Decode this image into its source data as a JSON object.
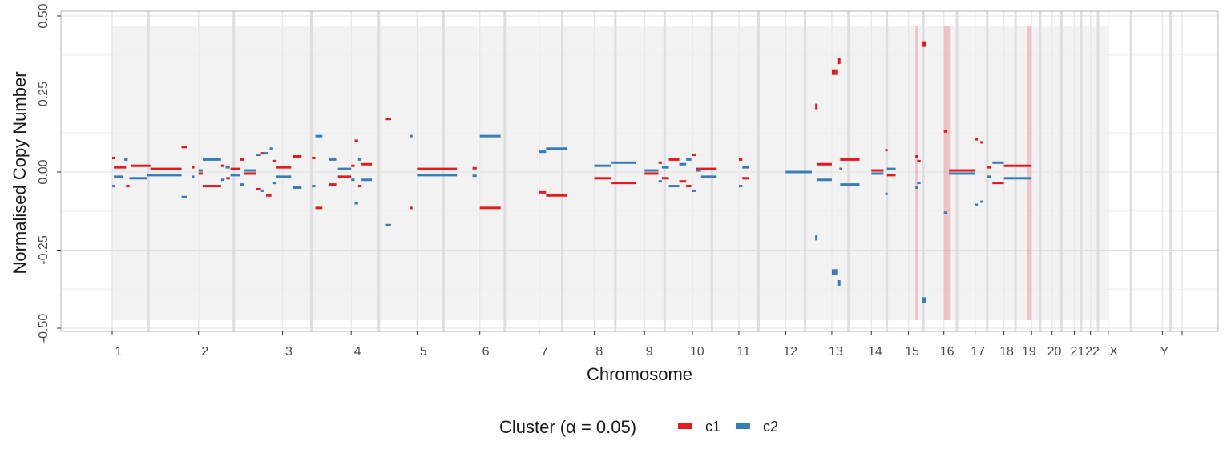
{
  "chart_data": {
    "type": "segment",
    "ylabel": "Normalised Copy Number",
    "xlabel": "Chromosome",
    "ylim": [
      -0.5,
      0.5
    ],
    "y_ticks": [
      -0.5,
      -0.25,
      0.0,
      0.25,
      0.5
    ],
    "y_tick_labels": [
      "-0.50",
      "-0.25",
      "0.00",
      "0.25",
      "0.50"
    ],
    "x_min_label": "-",
    "grid": true,
    "chromosomes": [
      "1",
      "2",
      "3",
      "4",
      "5",
      "6",
      "7",
      "8",
      "9",
      "10",
      "11",
      "12",
      "13",
      "14",
      "15",
      "16",
      "17",
      "18",
      "19",
      "20",
      "21",
      "22",
      "X",
      "Y"
    ],
    "chromosome_sizes_mb": [
      249,
      242,
      198,
      190,
      181,
      171,
      159,
      145,
      138,
      134,
      135,
      133,
      114,
      107,
      102,
      90,
      83,
      80,
      59,
      64,
      47,
      51,
      156,
      57
    ],
    "legend": {
      "title": "Cluster (α = 0.05)",
      "position": "bottom",
      "entries": [
        {
          "label": "c1",
          "color": "#e41a1c"
        },
        {
          "label": "c2",
          "color": "#377eb8"
        }
      ]
    },
    "highlighted_regions": [
      {
        "chrom": "15",
        "start_mb": 20,
        "end_mb": 27
      },
      {
        "chrom": "16",
        "start_mb": 0,
        "end_mb": 20
      },
      {
        "chrom": "18",
        "start_mb": 66,
        "end_mb": 80
      }
    ],
    "series": [
      {
        "name": "c1",
        "color": "#e41a1c",
        "segments": [
          {
            "chrom": "1",
            "start": 0,
            "end": 5,
            "value": 0.045
          },
          {
            "chrom": "1",
            "start": 5,
            "end": 40,
            "value": 0.015
          },
          {
            "chrom": "1",
            "start": 40,
            "end": 50,
            "value": -0.045
          },
          {
            "chrom": "1",
            "start": 55,
            "end": 110,
            "value": 0.02
          },
          {
            "chrom": "1",
            "start": 110,
            "end": 200,
            "value": 0.01
          },
          {
            "chrom": "1",
            "start": 200,
            "end": 215,
            "value": 0.08
          },
          {
            "chrom": "1",
            "start": 230,
            "end": 236,
            "value": 0.015
          },
          {
            "chrom": "2",
            "start": 0,
            "end": 12,
            "value": -0.005
          },
          {
            "chrom": "2",
            "start": 12,
            "end": 65,
            "value": -0.045
          },
          {
            "chrom": "2",
            "start": 65,
            "end": 75,
            "value": 0.02
          },
          {
            "chrom": "2",
            "start": 80,
            "end": 90,
            "value": -0.02
          },
          {
            "chrom": "2",
            "start": 92,
            "end": 120,
            "value": 0.01
          },
          {
            "chrom": "2",
            "start": 120,
            "end": 130,
            "value": 0.04
          },
          {
            "chrom": "2",
            "start": 130,
            "end": 165,
            "value": -0.005
          },
          {
            "chrom": "2",
            "start": 165,
            "end": 180,
            "value": -0.055
          },
          {
            "chrom": "2",
            "start": 180,
            "end": 190,
            "value": 0.06
          },
          {
            "chrom": "2",
            "start": 195,
            "end": 210,
            "value": -0.075
          },
          {
            "chrom": "2",
            "start": 215,
            "end": 225,
            "value": 0.035
          },
          {
            "chrom": "2",
            "start": 225,
            "end": 242,
            "value": 0.015
          },
          {
            "chrom": "3",
            "start": 0,
            "end": 25,
            "value": 0.015
          },
          {
            "chrom": "3",
            "start": 30,
            "end": 55,
            "value": 0.05
          },
          {
            "chrom": "3",
            "start": 85,
            "end": 95,
            "value": 0.045
          },
          {
            "chrom": "3",
            "start": 95,
            "end": 115,
            "value": -0.115
          },
          {
            "chrom": "3",
            "start": 135,
            "end": 155,
            "value": -0.04
          },
          {
            "chrom": "3",
            "start": 160,
            "end": 198,
            "value": -0.015
          },
          {
            "chrom": "4",
            "start": 0,
            "end": 10,
            "value": 0.02
          },
          {
            "chrom": "4",
            "start": 10,
            "end": 20,
            "value": 0.1
          },
          {
            "chrom": "4",
            "start": 20,
            "end": 30,
            "value": -0.045
          },
          {
            "chrom": "4",
            "start": 30,
            "end": 60,
            "value": 0.025
          },
          {
            "chrom": "4",
            "start": 100,
            "end": 115,
            "value": 0.17
          },
          {
            "chrom": "4",
            "start": 170,
            "end": 176,
            "value": -0.115
          },
          {
            "chrom": "5",
            "start": 0,
            "end": 115,
            "value": 0.01
          },
          {
            "chrom": "5",
            "start": 160,
            "end": 172,
            "value": 0.012
          },
          {
            "chrom": "6",
            "start": 0,
            "end": 60,
            "value": -0.115
          },
          {
            "chrom": "7",
            "start": 0,
            "end": 20,
            "value": -0.065
          },
          {
            "chrom": "7",
            "start": 20,
            "end": 80,
            "value": -0.075
          },
          {
            "chrom": "8",
            "start": 0,
            "end": 50,
            "value": -0.02
          },
          {
            "chrom": "8",
            "start": 50,
            "end": 120,
            "value": -0.035
          },
          {
            "chrom": "9",
            "start": 0,
            "end": 40,
            "value": -0.005
          },
          {
            "chrom": "9",
            "start": 40,
            "end": 50,
            "value": 0.03
          },
          {
            "chrom": "9",
            "start": 50,
            "end": 70,
            "value": -0.02
          },
          {
            "chrom": "9",
            "start": 70,
            "end": 100,
            "value": 0.04
          },
          {
            "chrom": "9",
            "start": 100,
            "end": 120,
            "value": -0.03
          },
          {
            "chrom": "9",
            "start": 120,
            "end": 135,
            "value": -0.045
          },
          {
            "chrom": "10",
            "start": 0,
            "end": 10,
            "value": 0.055
          },
          {
            "chrom": "10",
            "start": 10,
            "end": 25,
            "value": 0.01
          },
          {
            "chrom": "10",
            "start": 25,
            "end": 70,
            "value": 0.01
          },
          {
            "chrom": "11",
            "start": 0,
            "end": 10,
            "value": 0.04
          },
          {
            "chrom": "11",
            "start": 10,
            "end": 30,
            "value": -0.02
          },
          {
            "chrom": "12",
            "start": 0,
            "end": 75,
            "value": 0.0
          },
          {
            "chrom": "12",
            "start": 85,
            "end": 90,
            "value": 0.21
          },
          {
            "chrom": "12",
            "start": 90,
            "end": 133,
            "value": 0.025
          },
          {
            "chrom": "13",
            "start": 0,
            "end": 18,
            "value": 0.32
          },
          {
            "chrom": "13",
            "start": 18,
            "end": 22,
            "value": 0.355
          },
          {
            "chrom": "13",
            "start": 22,
            "end": 24,
            "value": 0.01
          },
          {
            "chrom": "13",
            "start": 24,
            "end": 80,
            "value": 0.04
          },
          {
            "chrom": "14",
            "start": 0,
            "end": 35,
            "value": 0.005
          },
          {
            "chrom": "14",
            "start": 40,
            "end": 45,
            "value": 0.07
          },
          {
            "chrom": "14",
            "start": 45,
            "end": 70,
            "value": -0.01
          },
          {
            "chrom": "15",
            "start": 20,
            "end": 25,
            "value": 0.05
          },
          {
            "chrom": "15",
            "start": 25,
            "end": 35,
            "value": 0.035
          },
          {
            "chrom": "15",
            "start": 40,
            "end": 50,
            "value": 0.41
          },
          {
            "chrom": "16",
            "start": 0,
            "end": 10,
            "value": 0.13
          },
          {
            "chrom": "16",
            "start": 15,
            "end": 90,
            "value": 0.005
          },
          {
            "chrom": "17",
            "start": 0,
            "end": 8,
            "value": 0.105
          },
          {
            "chrom": "17",
            "start": 15,
            "end": 23,
            "value": 0.095
          },
          {
            "chrom": "17",
            "start": 35,
            "end": 45,
            "value": 0.015
          },
          {
            "chrom": "17",
            "start": 50,
            "end": 83,
            "value": -0.035
          },
          {
            "chrom": "18",
            "start": 0,
            "end": 80,
            "value": 0.02
          }
        ]
      },
      {
        "name": "c2",
        "color": "#377eb8",
        "segments": [
          {
            "chrom": "1",
            "start": 0,
            "end": 5,
            "value": -0.045
          },
          {
            "chrom": "1",
            "start": 5,
            "end": 30,
            "value": -0.015
          },
          {
            "chrom": "1",
            "start": 35,
            "end": 45,
            "value": 0.04
          },
          {
            "chrom": "1",
            "start": 50,
            "end": 100,
            "value": -0.02
          },
          {
            "chrom": "1",
            "start": 100,
            "end": 200,
            "value": -0.01
          },
          {
            "chrom": "1",
            "start": 200,
            "end": 215,
            "value": -0.08
          },
          {
            "chrom": "1",
            "start": 230,
            "end": 236,
            "value": -0.015
          },
          {
            "chrom": "2",
            "start": 0,
            "end": 12,
            "value": 0.005
          },
          {
            "chrom": "2",
            "start": 12,
            "end": 65,
            "value": 0.04
          },
          {
            "chrom": "2",
            "start": 65,
            "end": 75,
            "value": -0.025
          },
          {
            "chrom": "2",
            "start": 78,
            "end": 90,
            "value": 0.015
          },
          {
            "chrom": "2",
            "start": 92,
            "end": 120,
            "value": -0.01
          },
          {
            "chrom": "2",
            "start": 120,
            "end": 130,
            "value": -0.04
          },
          {
            "chrom": "2",
            "start": 130,
            "end": 165,
            "value": 0.005
          },
          {
            "chrom": "2",
            "start": 165,
            "end": 180,
            "value": 0.055
          },
          {
            "chrom": "2",
            "start": 180,
            "end": 190,
            "value": -0.06
          },
          {
            "chrom": "2",
            "start": 190,
            "end": 200,
            "value": 0.06
          },
          {
            "chrom": "2",
            "start": 205,
            "end": 215,
            "value": 0.075
          },
          {
            "chrom": "2",
            "start": 215,
            "end": 225,
            "value": -0.035
          },
          {
            "chrom": "2",
            "start": 225,
            "end": 242,
            "value": -0.015
          },
          {
            "chrom": "3",
            "start": 0,
            "end": 25,
            "value": -0.015
          },
          {
            "chrom": "3",
            "start": 30,
            "end": 55,
            "value": -0.05
          },
          {
            "chrom": "3",
            "start": 85,
            "end": 95,
            "value": -0.045
          },
          {
            "chrom": "3",
            "start": 95,
            "end": 115,
            "value": 0.115
          },
          {
            "chrom": "3",
            "start": 135,
            "end": 155,
            "value": 0.04
          },
          {
            "chrom": "3",
            "start": 160,
            "end": 198,
            "value": 0.01
          },
          {
            "chrom": "4",
            "start": 0,
            "end": 10,
            "value": -0.025
          },
          {
            "chrom": "4",
            "start": 10,
            "end": 20,
            "value": -0.1
          },
          {
            "chrom": "4",
            "start": 20,
            "end": 30,
            "value": 0.04
          },
          {
            "chrom": "4",
            "start": 30,
            "end": 60,
            "value": -0.025
          },
          {
            "chrom": "4",
            "start": 100,
            "end": 115,
            "value": -0.17
          },
          {
            "chrom": "4",
            "start": 170,
            "end": 176,
            "value": 0.115
          },
          {
            "chrom": "5",
            "start": 0,
            "end": 115,
            "value": -0.01
          },
          {
            "chrom": "5",
            "start": 160,
            "end": 172,
            "value": -0.012
          },
          {
            "chrom": "6",
            "start": 0,
            "end": 60,
            "value": 0.115
          },
          {
            "chrom": "7",
            "start": 0,
            "end": 20,
            "value": 0.065
          },
          {
            "chrom": "7",
            "start": 20,
            "end": 80,
            "value": 0.075
          },
          {
            "chrom": "8",
            "start": 0,
            "end": 50,
            "value": 0.02
          },
          {
            "chrom": "8",
            "start": 50,
            "end": 120,
            "value": 0.03
          },
          {
            "chrom": "9",
            "start": 0,
            "end": 40,
            "value": 0.005
          },
          {
            "chrom": "9",
            "start": 40,
            "end": 50,
            "value": -0.03
          },
          {
            "chrom": "9",
            "start": 50,
            "end": 70,
            "value": 0.015
          },
          {
            "chrom": "9",
            "start": 70,
            "end": 100,
            "value": -0.045
          },
          {
            "chrom": "9",
            "start": 100,
            "end": 120,
            "value": 0.025
          },
          {
            "chrom": "9",
            "start": 120,
            "end": 135,
            "value": 0.04
          },
          {
            "chrom": "10",
            "start": 0,
            "end": 10,
            "value": -0.06
          },
          {
            "chrom": "10",
            "start": 10,
            "end": 25,
            "value": 0.005
          },
          {
            "chrom": "10",
            "start": 25,
            "end": 70,
            "value": -0.015
          },
          {
            "chrom": "11",
            "start": 0,
            "end": 10,
            "value": -0.045
          },
          {
            "chrom": "11",
            "start": 10,
            "end": 30,
            "value": 0.015
          },
          {
            "chrom": "12",
            "start": 0,
            "end": 75,
            "value": 0.0
          },
          {
            "chrom": "12",
            "start": 85,
            "end": 90,
            "value": -0.21
          },
          {
            "chrom": "12",
            "start": 90,
            "end": 133,
            "value": -0.025
          },
          {
            "chrom": "13",
            "start": 0,
            "end": 18,
            "value": -0.32
          },
          {
            "chrom": "13",
            "start": 18,
            "end": 22,
            "value": -0.355
          },
          {
            "chrom": "13",
            "start": 22,
            "end": 24,
            "value": 0.01
          },
          {
            "chrom": "13",
            "start": 24,
            "end": 80,
            "value": -0.04
          },
          {
            "chrom": "14",
            "start": 0,
            "end": 35,
            "value": -0.005
          },
          {
            "chrom": "14",
            "start": 40,
            "end": 45,
            "value": -0.07
          },
          {
            "chrom": "14",
            "start": 45,
            "end": 70,
            "value": 0.01
          },
          {
            "chrom": "15",
            "start": 20,
            "end": 25,
            "value": -0.05
          },
          {
            "chrom": "15",
            "start": 25,
            "end": 35,
            "value": -0.035
          },
          {
            "chrom": "15",
            "start": 40,
            "end": 50,
            "value": -0.41
          },
          {
            "chrom": "16",
            "start": 0,
            "end": 10,
            "value": -0.13
          },
          {
            "chrom": "16",
            "start": 15,
            "end": 90,
            "value": -0.005
          },
          {
            "chrom": "17",
            "start": 0,
            "end": 8,
            "value": -0.105
          },
          {
            "chrom": "17",
            "start": 15,
            "end": 23,
            "value": -0.095
          },
          {
            "chrom": "17",
            "start": 35,
            "end": 45,
            "value": -0.015
          },
          {
            "chrom": "17",
            "start": 50,
            "end": 83,
            "value": 0.03
          },
          {
            "chrom": "18",
            "start": 0,
            "end": 80,
            "value": -0.02
          }
        ]
      }
    ]
  }
}
